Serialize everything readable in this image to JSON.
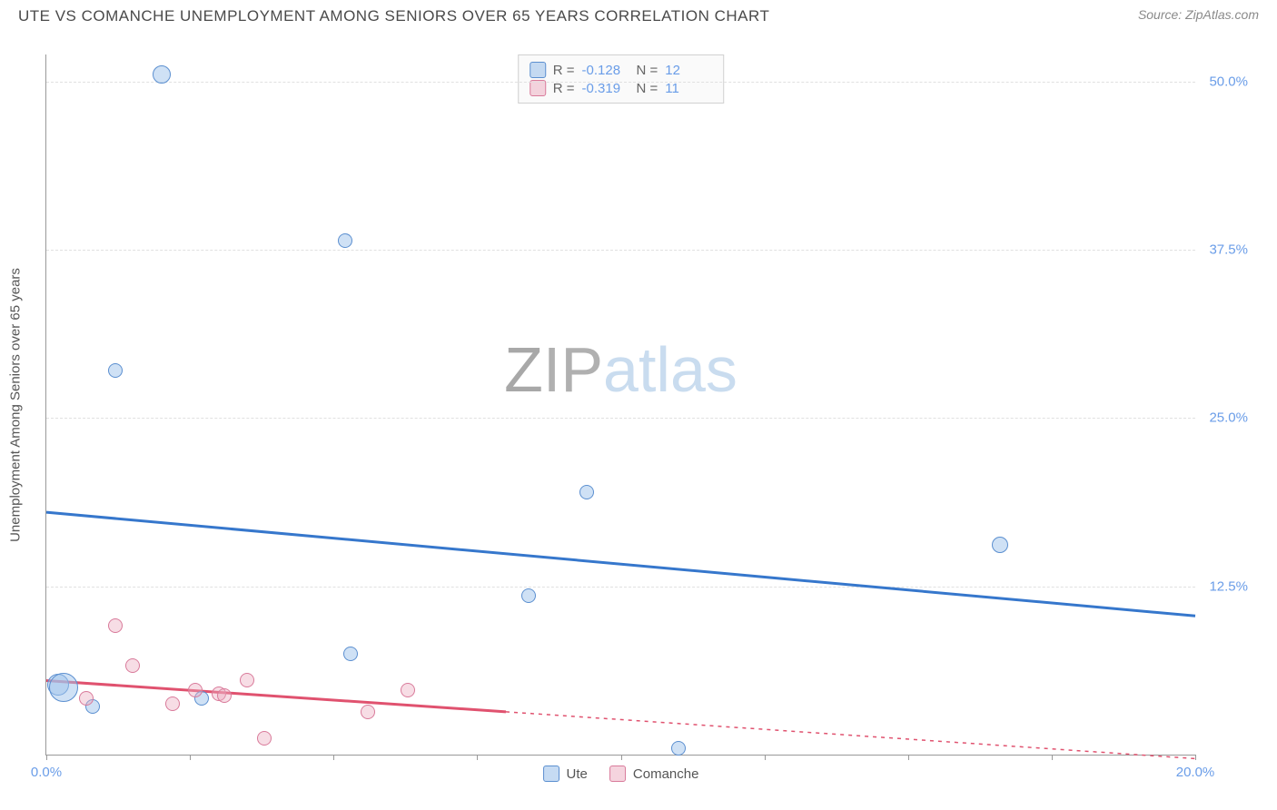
{
  "header": {
    "title": "UTE VS COMANCHE UNEMPLOYMENT AMONG SENIORS OVER 65 YEARS CORRELATION CHART",
    "source": "Source: ZipAtlas.com"
  },
  "chart": {
    "type": "scatter",
    "y_axis_label": "Unemployment Among Seniors over 65 years",
    "xlim": [
      0,
      20
    ],
    "ylim": [
      0,
      52
    ],
    "x_ticks": [
      0,
      2.5,
      5,
      7.5,
      10,
      12.5,
      15,
      17.5,
      20
    ],
    "x_tick_labels": {
      "0": "0.0%",
      "20": "20.0%"
    },
    "y_ticks": [
      12.5,
      25.0,
      37.5,
      50.0
    ],
    "y_tick_labels": [
      "12.5%",
      "25.0%",
      "37.5%",
      "50.0%"
    ],
    "background_color": "#ffffff",
    "grid_color": "#e0e0e0",
    "axis_color": "#999999",
    "tick_label_color": "#6a9de8",
    "axis_label_color": "#555555",
    "watermark": {
      "z": "Z",
      "ip": "IP",
      "atlas": "atlas"
    },
    "series": {
      "ute": {
        "label": "Ute",
        "color_fill": "rgba(160,195,235,0.5)",
        "color_stroke": "#5b8fd0",
        "trend_color": "#3677cc",
        "trend_width": 3,
        "R": "-0.128",
        "N": "12",
        "trend": {
          "x1": 0,
          "y1": 18.0,
          "x2": 20,
          "y2": 10.3,
          "dash_from_x": null
        },
        "points": [
          {
            "x": 2.0,
            "y": 50.5,
            "r": 10
          },
          {
            "x": 5.2,
            "y": 38.2,
            "r": 8
          },
          {
            "x": 1.2,
            "y": 28.5,
            "r": 8
          },
          {
            "x": 9.4,
            "y": 19.5,
            "r": 8
          },
          {
            "x": 16.6,
            "y": 15.6,
            "r": 9
          },
          {
            "x": 8.4,
            "y": 11.8,
            "r": 8
          },
          {
            "x": 5.3,
            "y": 7.5,
            "r": 8
          },
          {
            "x": 0.2,
            "y": 5.2,
            "r": 12
          },
          {
            "x": 0.3,
            "y": 5.0,
            "r": 16
          },
          {
            "x": 2.7,
            "y": 4.2,
            "r": 8
          },
          {
            "x": 0.8,
            "y": 3.6,
            "r": 8
          },
          {
            "x": 11.0,
            "y": 0.5,
            "r": 8
          }
        ]
      },
      "comanche": {
        "label": "Comanche",
        "color_fill": "rgba(235,170,190,0.4)",
        "color_stroke": "#d97a9a",
        "trend_color": "#e0526f",
        "trend_width": 3,
        "R": "-0.319",
        "N": "11",
        "trend": {
          "x1": 0,
          "y1": 5.5,
          "x2": 20,
          "y2": -0.3,
          "dash_from_x": 8.0
        },
        "points": [
          {
            "x": 1.2,
            "y": 9.6,
            "r": 8
          },
          {
            "x": 0.7,
            "y": 4.2,
            "r": 8
          },
          {
            "x": 1.5,
            "y": 6.6,
            "r": 8
          },
          {
            "x": 2.2,
            "y": 3.8,
            "r": 8
          },
          {
            "x": 2.6,
            "y": 4.8,
            "r": 8
          },
          {
            "x": 3.0,
            "y": 4.5,
            "r": 8
          },
          {
            "x": 3.1,
            "y": 4.4,
            "r": 8
          },
          {
            "x": 3.5,
            "y": 5.5,
            "r": 8
          },
          {
            "x": 5.6,
            "y": 3.2,
            "r": 8
          },
          {
            "x": 6.3,
            "y": 4.8,
            "r": 8
          },
          {
            "x": 3.8,
            "y": 1.2,
            "r": 8
          }
        ]
      }
    },
    "legend_top_rows": [
      {
        "swatch": "ute",
        "R_label": "R =",
        "R_val_key": "chart.series.ute.R",
        "N_label": "N =",
        "N_val_key": "chart.series.ute.N"
      },
      {
        "swatch": "comanche",
        "R_label": "R =",
        "R_val_key": "chart.series.comanche.R",
        "N_label": "N =",
        "N_val_key": "chart.series.comanche.N"
      }
    ]
  }
}
